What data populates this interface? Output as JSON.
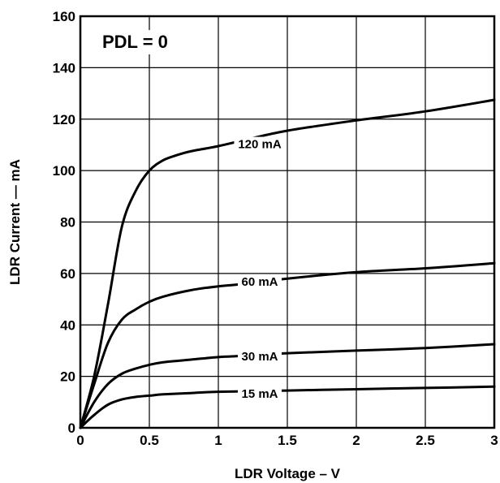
{
  "chart_data": {
    "type": "line",
    "xlabel": "LDR Voltage – V",
    "ylabel": "LDR Current — mA",
    "xlim": [
      0,
      3
    ],
    "ylim": [
      0,
      160
    ],
    "grid": true,
    "x_ticks": [
      0,
      0.5,
      1,
      1.5,
      2,
      2.5,
      3
    ],
    "x_tick_labels": [
      "0",
      "0.5",
      "1",
      "1.5",
      "2",
      "2.5",
      "3"
    ],
    "y_ticks": [
      0,
      20,
      40,
      60,
      80,
      100,
      120,
      140,
      160
    ],
    "y_tick_labels": [
      "0",
      "20",
      "40",
      "60",
      "80",
      "100",
      "120",
      "140",
      "160"
    ],
    "annotation": "PDL = 0",
    "series": [
      {
        "name": "120 mA",
        "label_at": [
          1.3,
          109
        ],
        "points": [
          [
            0,
            0
          ],
          [
            0.1,
            20
          ],
          [
            0.2,
            48
          ],
          [
            0.3,
            78
          ],
          [
            0.4,
            92
          ],
          [
            0.5,
            100
          ],
          [
            0.6,
            104
          ],
          [
            0.7,
            106
          ],
          [
            0.8,
            107.5
          ],
          [
            1.0,
            109.5
          ],
          [
            1.2,
            112
          ],
          [
            1.5,
            115.5
          ],
          [
            2.0,
            119.5
          ],
          [
            2.5,
            123
          ],
          [
            3.0,
            127.5
          ]
        ]
      },
      {
        "name": "60 mA",
        "label_at": [
          1.3,
          55.5
        ],
        "points": [
          [
            0,
            0
          ],
          [
            0.1,
            17
          ],
          [
            0.2,
            33
          ],
          [
            0.3,
            42
          ],
          [
            0.4,
            46
          ],
          [
            0.5,
            49
          ],
          [
            0.6,
            51
          ],
          [
            0.8,
            53.5
          ],
          [
            1.0,
            55
          ],
          [
            1.2,
            56
          ],
          [
            1.5,
            58
          ],
          [
            2.0,
            60.5
          ],
          [
            2.5,
            62
          ],
          [
            3.0,
            64
          ]
        ]
      },
      {
        "name": "30 mA",
        "label_at": [
          1.3,
          26.5
        ],
        "points": [
          [
            0,
            0
          ],
          [
            0.1,
            10
          ],
          [
            0.2,
            17
          ],
          [
            0.3,
            21
          ],
          [
            0.4,
            23
          ],
          [
            0.5,
            24.5
          ],
          [
            0.6,
            25.5
          ],
          [
            0.8,
            26.5
          ],
          [
            1.0,
            27.5
          ],
          [
            1.2,
            28
          ],
          [
            1.5,
            29
          ],
          [
            2.0,
            30
          ],
          [
            2.5,
            31
          ],
          [
            3.0,
            32.5
          ]
        ]
      },
      {
        "name": "15 mA",
        "label_at": [
          1.3,
          12
        ],
        "points": [
          [
            0,
            0
          ],
          [
            0.1,
            5
          ],
          [
            0.2,
            9
          ],
          [
            0.3,
            11
          ],
          [
            0.4,
            12
          ],
          [
            0.5,
            12.5
          ],
          [
            0.6,
            13
          ],
          [
            0.8,
            13.5
          ],
          [
            1.0,
            14
          ],
          [
            1.5,
            14.5
          ],
          [
            2.0,
            15
          ],
          [
            2.5,
            15.5
          ],
          [
            3.0,
            16
          ]
        ]
      }
    ]
  }
}
